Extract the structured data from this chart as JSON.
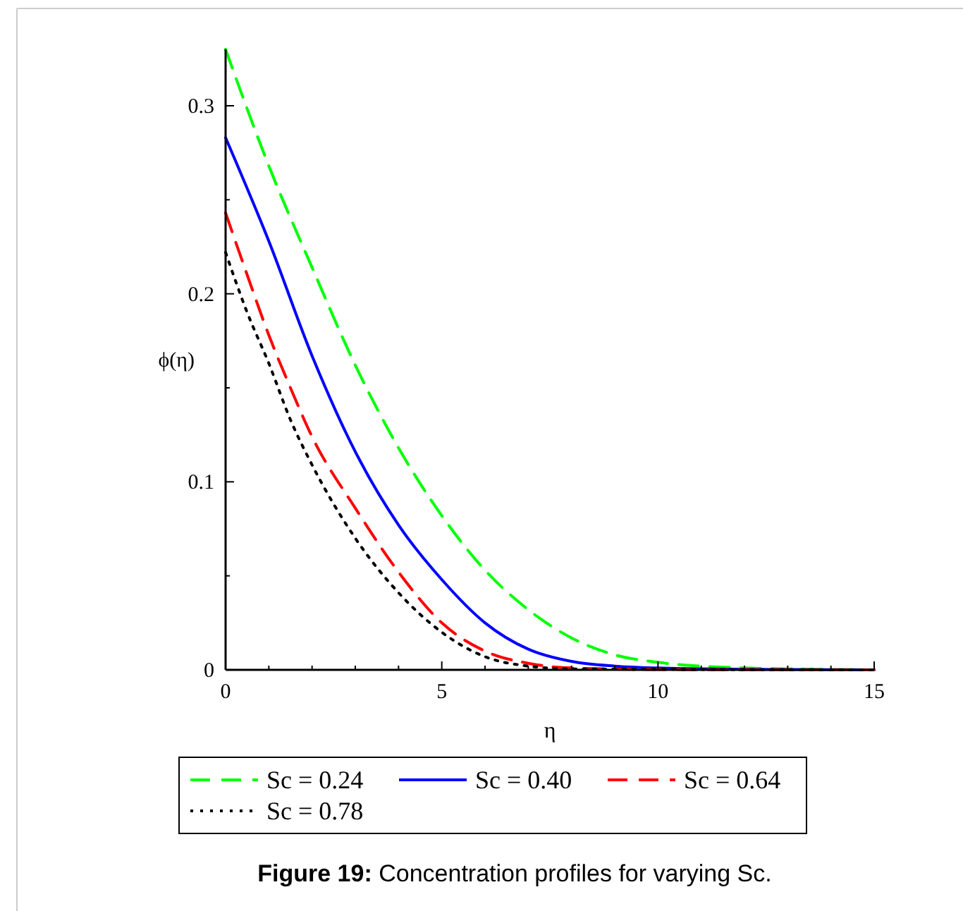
{
  "chart_data": {
    "type": "line",
    "title": "Figure 19: Concentration profiles for varying Sc.",
    "xlabel": "η",
    "ylabel": "ϕ(η)",
    "xlim": [
      0,
      15
    ],
    "ylim": [
      0,
      0.33
    ],
    "xticks": [
      0,
      {
        "value": 1,
        "label": null
      },
      {
        "value": 2,
        "label": null
      },
      {
        "value": 3,
        "label": null
      },
      {
        "value": 4,
        "label": null
      },
      5,
      {
        "value": 6,
        "label": null
      },
      {
        "value": 7,
        "label": null
      },
      {
        "value": 8,
        "label": null
      },
      {
        "value": 9,
        "label": null
      },
      10,
      {
        "value": 11,
        "label": null
      },
      {
        "value": 12,
        "label": null
      },
      {
        "value": 13,
        "label": null
      },
      {
        "value": 14,
        "label": null
      },
      15
    ],
    "yticks": [
      0,
      {
        "value": 0.05,
        "label": null
      },
      0.1,
      {
        "value": 0.15,
        "label": null
      },
      0.2,
      {
        "value": 0.25,
        "label": null
      },
      0.3
    ],
    "grid": false,
    "legend": "bottom",
    "series": [
      {
        "name": "Sc = 0.24",
        "color": "#00ff00",
        "line_style": "dashed",
        "x": [
          0,
          1,
          2,
          3,
          4,
          5,
          6,
          7,
          8,
          9,
          10,
          11,
          12,
          13,
          15
        ],
        "values": [
          0.33,
          0.268,
          0.214,
          0.162,
          0.118,
          0.082,
          0.053,
          0.032,
          0.017,
          0.008,
          0.004,
          0.002,
          0.001,
          0.0005,
          0
        ]
      },
      {
        "name": "Sc = 0.40",
        "color": "#0000ff",
        "line_style": "solid",
        "x": [
          0,
          1,
          2,
          3,
          4,
          5,
          6,
          7,
          8,
          9,
          10,
          12,
          15
        ],
        "values": [
          0.283,
          0.228,
          0.167,
          0.116,
          0.077,
          0.048,
          0.025,
          0.011,
          0.0045,
          0.002,
          0.001,
          0.0003,
          0
        ]
      },
      {
        "name": "Sc = 0.64",
        "color": "#ff0000",
        "line_style": "dashed",
        "x": [
          0,
          0.5,
          1,
          1.5,
          2,
          3,
          4,
          5,
          6,
          7,
          8,
          10,
          15
        ],
        "values": [
          0.243,
          0.21,
          0.178,
          0.15,
          0.124,
          0.086,
          0.052,
          0.025,
          0.01,
          0.0035,
          0.001,
          0.0002,
          0
        ]
      },
      {
        "name": "Sc = 0.78",
        "color": "#000000",
        "line_style": "dotted",
        "x": [
          0,
          0.5,
          1,
          1.5,
          2,
          3,
          4,
          5,
          6,
          7,
          8,
          15
        ],
        "values": [
          0.222,
          0.19,
          0.163,
          0.133,
          0.109,
          0.07,
          0.041,
          0.02,
          0.007,
          0.002,
          0.0005,
          0
        ]
      }
    ]
  }
}
